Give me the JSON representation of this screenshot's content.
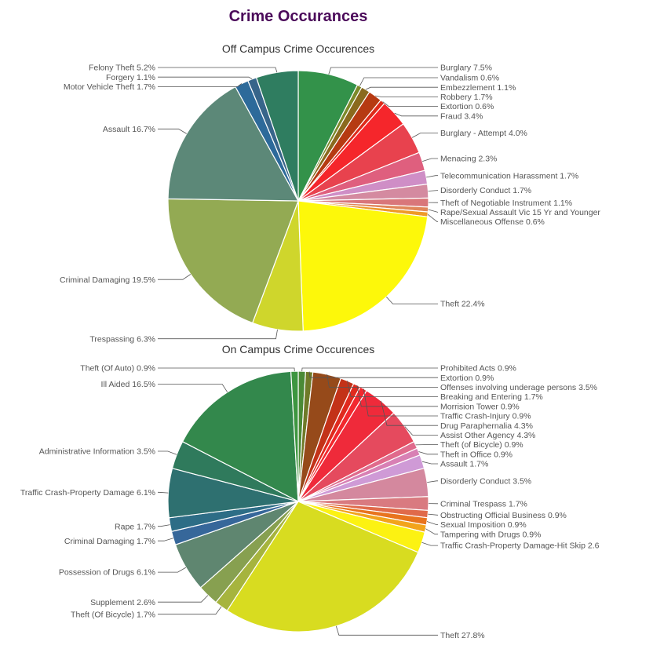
{
  "page_title": "Crime Occurances",
  "chart_data": [
    {
      "type": "pie",
      "title": "Off Campus Crime Occurences",
      "slices": [
        {
          "label": "Burglary 7.5%",
          "value": 7.5,
          "color": "#33924a"
        },
        {
          "label": "Vandalism 0.6%",
          "value": 0.6,
          "color": "#7d8a2a"
        },
        {
          "label": "Embezzlement 1.1%",
          "value": 1.1,
          "color": "#8a6a1e"
        },
        {
          "label": "Robbery 1.7%",
          "value": 1.7,
          "color": "#b63a12"
        },
        {
          "label": "Extortion 0.6%",
          "value": 0.6,
          "color": "#de2a1a"
        },
        {
          "label": "Fraud 3.4%",
          "value": 3.4,
          "color": "#f5262b"
        },
        {
          "label": "Burglary - Attempt 4.0%",
          "value": 4.0,
          "color": "#e8424e"
        },
        {
          "label": "Menacing 2.3%",
          "value": 2.3,
          "color": "#df5f7e"
        },
        {
          "label": "Telecommunication Harassment 1.7%",
          "value": 1.7,
          "color": "#cf8ec6"
        },
        {
          "label": "Disorderly Conduct 1.7%",
          "value": 1.7,
          "color": "#d48aa0"
        },
        {
          "label": "Theft of Negotiable Instrument 1.1%",
          "value": 1.1,
          "color": "#d9767a"
        },
        {
          "label": "Rape/Sexual Assault Vic 15 Yr and Younger",
          "value": 0.6,
          "color": "#e0865a"
        },
        {
          "label": "Miscellaneous Offense 0.6%",
          "value": 0.6,
          "color": "#ee9a28"
        },
        {
          "label": "Theft 22.4%",
          "value": 22.4,
          "color": "#fdf80a"
        },
        {
          "label": "Trespassing 6.3%",
          "value": 6.3,
          "color": "#cfd62c"
        },
        {
          "label": "Criminal Damaging 19.5%",
          "value": 19.5,
          "color": "#93aa53"
        },
        {
          "label": "Assault 16.7%",
          "value": 16.7,
          "color": "#5c8878"
        },
        {
          "label": "Motor Vehicle Theft 1.7%",
          "value": 1.7,
          "color": "#2d6a9a"
        },
        {
          "label": "Forgery 1.1%",
          "value": 1.1,
          "color": "#37658a"
        },
        {
          "label": "Felony Theft 5.2%",
          "value": 5.2,
          "color": "#2f7d60"
        }
      ]
    },
    {
      "type": "pie",
      "title": "On Campus Crime Occurences",
      "slices": [
        {
          "label": "Prohibited Acts 0.9%",
          "value": 0.9,
          "color": "#4a8a36"
        },
        {
          "label": "Extortion 0.9%",
          "value": 0.9,
          "color": "#6f7a28"
        },
        {
          "label": "Offenses involving underage persons 3.5%",
          "value": 3.5,
          "color": "#964a1a"
        },
        {
          "label": "Breaking and Entering 1.7%",
          "value": 1.7,
          "color": "#c33218"
        },
        {
          "label": "Morrision Tower 0.9%",
          "value": 0.9,
          "color": "#e02a1e"
        },
        {
          "label": "Traffic Crash-Injury 0.9%",
          "value": 0.9,
          "color": "#f2282e"
        },
        {
          "label": "Drug Paraphernalia 4.3%",
          "value": 4.3,
          "color": "#ef2a3a"
        },
        {
          "label": "Assist Other Agency 4.3%",
          "value": 4.3,
          "color": "#e54a5e"
        },
        {
          "label": "Theft (of Bicycle) 0.9%",
          "value": 0.9,
          "color": "#e06a8c"
        },
        {
          "label": "Theft in Office 0.9%",
          "value": 0.9,
          "color": "#d880b4"
        },
        {
          "label": "Assault 1.7%",
          "value": 1.7,
          "color": "#cf9ad6"
        },
        {
          "label": "Disorderly Conduct 3.5%",
          "value": 3.5,
          "color": "#d4889e"
        },
        {
          "label": "Criminal Trespass 1.7%",
          "value": 1.7,
          "color": "#d97a80"
        },
        {
          "label": "Obstructing Official Business 0.9%",
          "value": 0.9,
          "color": "#e06a4a"
        },
        {
          "label": "Sexual Imposition 0.9%",
          "value": 0.9,
          "color": "#e8741e"
        },
        {
          "label": "Tampering with Drugs 0.9%",
          "value": 0.9,
          "color": "#f2a41c"
        },
        {
          "label": "Traffic Crash-Property Damage-Hit Skip 2.6",
          "value": 2.6,
          "color": "#fcf212"
        },
        {
          "label": "Theft 27.8%",
          "value": 27.8,
          "color": "#d8dc20"
        },
        {
          "label": "Theft (Of Bicycle) 1.7%",
          "value": 1.7,
          "color": "#a6b43e"
        },
        {
          "label": "Supplement 2.6%",
          "value": 2.6,
          "color": "#87a050"
        },
        {
          "label": "Possession of Drugs 6.1%",
          "value": 6.1,
          "color": "#5f8670"
        },
        {
          "label": "Criminal Damaging 1.7%",
          "value": 1.7,
          "color": "#36679a"
        },
        {
          "label": "Rape 1.7%",
          "value": 1.7,
          "color": "#2d6d86"
        },
        {
          "label": "Traffic Crash-Property Damage 6.1%",
          "value": 6.1,
          "color": "#2e7070"
        },
        {
          "label": "Administrative Information 3.5%",
          "value": 3.5,
          "color": "#2f7a5c"
        },
        {
          "label": "Ill Aided 16.5%",
          "value": 16.5,
          "color": "#33884c"
        },
        {
          "label": "Theft (Of Auto) 0.9%",
          "value": 0.9,
          "color": "#3d9640"
        }
      ]
    }
  ]
}
